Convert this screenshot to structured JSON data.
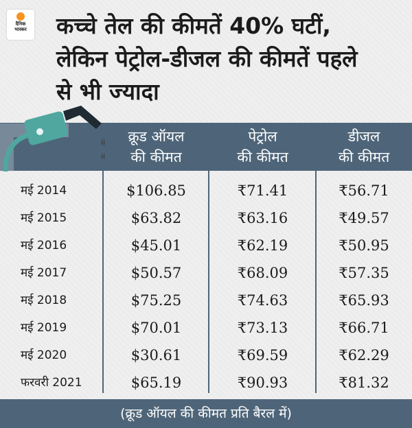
{
  "brand": {
    "logo_text_1": "दैनिक",
    "logo_text_2": "भास्कर"
  },
  "title": {
    "line1": "कच्चे तेल की कीमतें 40% घटीं,",
    "line2": "लेकिन पेट्रोल-डीजल की कीमतें पहले",
    "line3": "से भी ज्यादा"
  },
  "colors": {
    "band": "#4e6579",
    "background": "#efefef",
    "logo_accent": "#f7941d",
    "pump_green": "#4fa7a0"
  },
  "headers": [
    {
      "line1": "क्रूड ऑयल",
      "line2": "की कीमत"
    },
    {
      "line1": "पेट्रोल",
      "line2": "की कीमत"
    },
    {
      "line1": "डीजल",
      "line2": "की कीमत"
    }
  ],
  "footer": "(क्रूड ऑयल की कीमत प्रति बैरल में)",
  "chart_data": {
    "type": "table",
    "columns": [
      "",
      "क्रूड ऑयल की कीमत",
      "पेट्रोल की कीमत",
      "डीजल की कीमत"
    ],
    "rows": [
      {
        "period": "मई 2014",
        "crude": "$106.85",
        "petrol": "₹71.41",
        "diesel": "₹56.71"
      },
      {
        "period": "मई 2015",
        "crude": "$63.82",
        "petrol": "₹63.16",
        "diesel": "₹49.57"
      },
      {
        "period": "मई 2016",
        "crude": "$45.01",
        "petrol": "₹62.19",
        "diesel": "₹50.95"
      },
      {
        "period": "मई 2017",
        "crude": "$50.57",
        "petrol": "₹68.09",
        "diesel": "₹57.35"
      },
      {
        "period": "मई 2018",
        "crude": "$75.25",
        "petrol": "₹74.63",
        "diesel": "₹65.93"
      },
      {
        "period": "मई 2019",
        "crude": "$70.01",
        "petrol": "₹73.13",
        "diesel": "₹66.71"
      },
      {
        "period": "मई 2020",
        "crude": "$30.61",
        "petrol": "₹69.59",
        "diesel": "₹62.29"
      },
      {
        "period": "फरवरी 2021",
        "crude": "$65.19",
        "petrol": "₹90.93",
        "diesel": "₹81.32"
      }
    ]
  }
}
